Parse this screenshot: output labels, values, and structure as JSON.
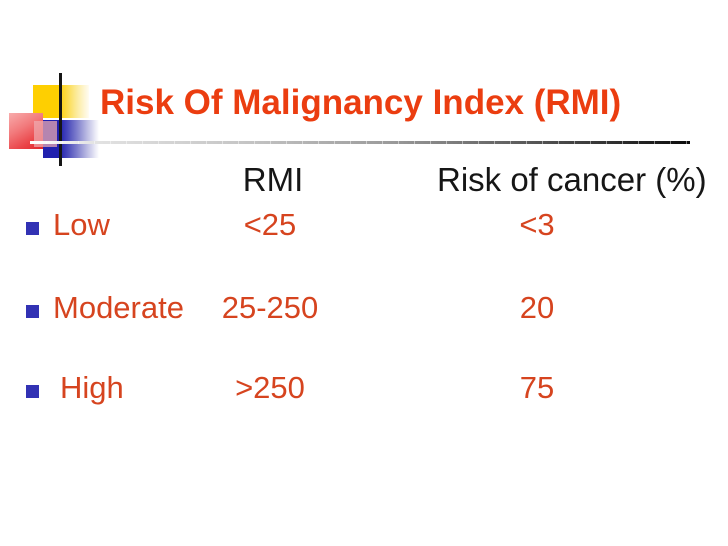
{
  "slide": {
    "title": "Risk Of Malignancy Index (RMI)",
    "table": {
      "headers": [
        "RMI",
        "Risk of cancer (%)"
      ],
      "rows": [
        {
          "label": "Low",
          "rmi": "<25",
          "risk": "<3"
        },
        {
          "label": "Moderate",
          "rmi": "25-250",
          "risk": "20"
        },
        {
          "label": "High",
          "rmi": ">250",
          "risk": "75"
        }
      ]
    },
    "colors": {
      "title_text": "#EB3D10",
      "body_text": "#D6441F",
      "header_text": "#161616",
      "bullet": "#3232B4",
      "decor_yellow": "#FECF01",
      "decor_red": "#E2252B",
      "decor_blue": "#2121AE"
    },
    "icons": {
      "bullet_icon": "small-blue-square"
    }
  }
}
